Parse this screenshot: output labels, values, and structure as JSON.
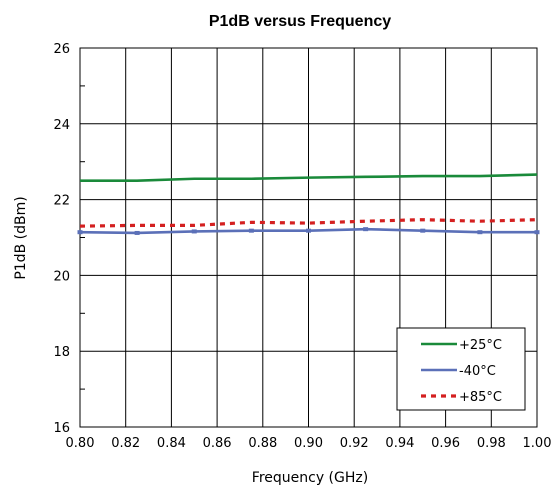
{
  "chart_data": {
    "type": "line",
    "title": "P1dB versus Frequency",
    "xlabel": "Frequency (GHz)",
    "ylabel": "P1dB (dBm)",
    "xlim": [
      0.8,
      1.0
    ],
    "ylim": [
      16,
      26
    ],
    "x_ticks": [
      "0.80",
      "0.82",
      "0.84",
      "0.86",
      "0.88",
      "0.90",
      "0.92",
      "0.94",
      "0.96",
      "0.98",
      "1.00"
    ],
    "y_ticks": [
      "16",
      "18",
      "20",
      "22",
      "24",
      "26"
    ],
    "grid": "vertical-and-horizontal",
    "legend_position": "bottom-right",
    "series": [
      {
        "name": "+25°C",
        "color": "#1a8a3a",
        "style": "solid",
        "x": [
          0.8,
          0.825,
          0.85,
          0.875,
          0.9,
          0.925,
          0.95,
          0.975,
          1.0
        ],
        "y": [
          22.5,
          22.5,
          22.55,
          22.55,
          22.58,
          22.6,
          22.62,
          22.62,
          22.66
        ]
      },
      {
        "name": "-40°C",
        "color": "#5b70b8",
        "style": "solid-marker",
        "x": [
          0.8,
          0.825,
          0.85,
          0.875,
          0.9,
          0.925,
          0.95,
          0.975,
          1.0
        ],
        "y": [
          21.14,
          21.12,
          21.16,
          21.18,
          21.18,
          21.22,
          21.18,
          21.14,
          21.14
        ]
      },
      {
        "name": "+85°C",
        "color": "#d42020",
        "style": "dashed",
        "x": [
          0.8,
          0.825,
          0.85,
          0.875,
          0.9,
          0.925,
          0.95,
          0.975,
          1.0
        ],
        "y": [
          21.3,
          21.32,
          21.32,
          21.4,
          21.38,
          21.43,
          21.47,
          21.43,
          21.47
        ]
      }
    ]
  }
}
